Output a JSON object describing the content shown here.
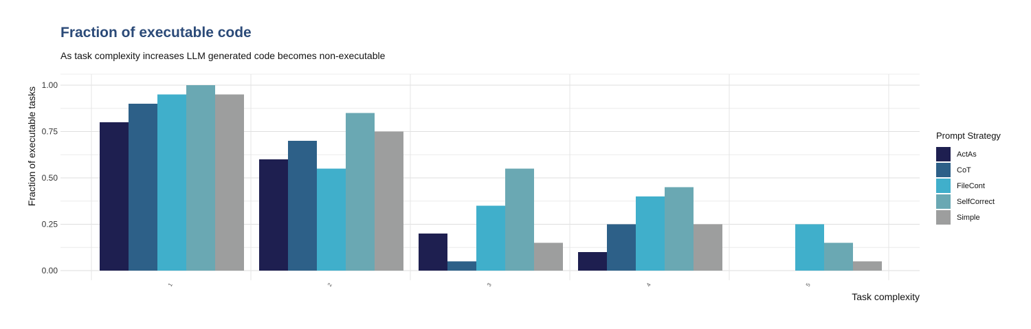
{
  "chart_data": {
    "type": "bar",
    "title": "Fraction of executable code",
    "subtitle": "As task complexity increases LLM generated code becomes non-executable",
    "xlabel": "Task complexity",
    "ylabel": "Fraction of executable tasks",
    "categories": [
      "1",
      "2",
      "3",
      "4",
      "5"
    ],
    "ylim": [
      0,
      1
    ],
    "yticks": [
      "0.00",
      "0.25",
      "0.50",
      "0.75",
      "1.00"
    ],
    "grid": true,
    "legend": {
      "title": "Prompt Strategy",
      "position": "right"
    },
    "series": [
      {
        "name": "ActAs",
        "color": "#1e1f50",
        "values": [
          0.8,
          0.6,
          0.2,
          0.1,
          0.0
        ]
      },
      {
        "name": "CoT",
        "color": "#2d6088",
        "values": [
          0.9,
          0.7,
          0.05,
          0.25,
          0.0
        ]
      },
      {
        "name": "FileCont",
        "color": "#40afcb",
        "values": [
          0.95,
          0.55,
          0.35,
          0.4,
          0.25
        ]
      },
      {
        "name": "SelfCorrect",
        "color": "#6aa8b3",
        "values": [
          1.0,
          0.85,
          0.55,
          0.45,
          0.15
        ]
      },
      {
        "name": "Simple",
        "color": "#9d9e9e",
        "values": [
          0.95,
          0.75,
          0.15,
          0.25,
          0.05
        ]
      }
    ]
  }
}
